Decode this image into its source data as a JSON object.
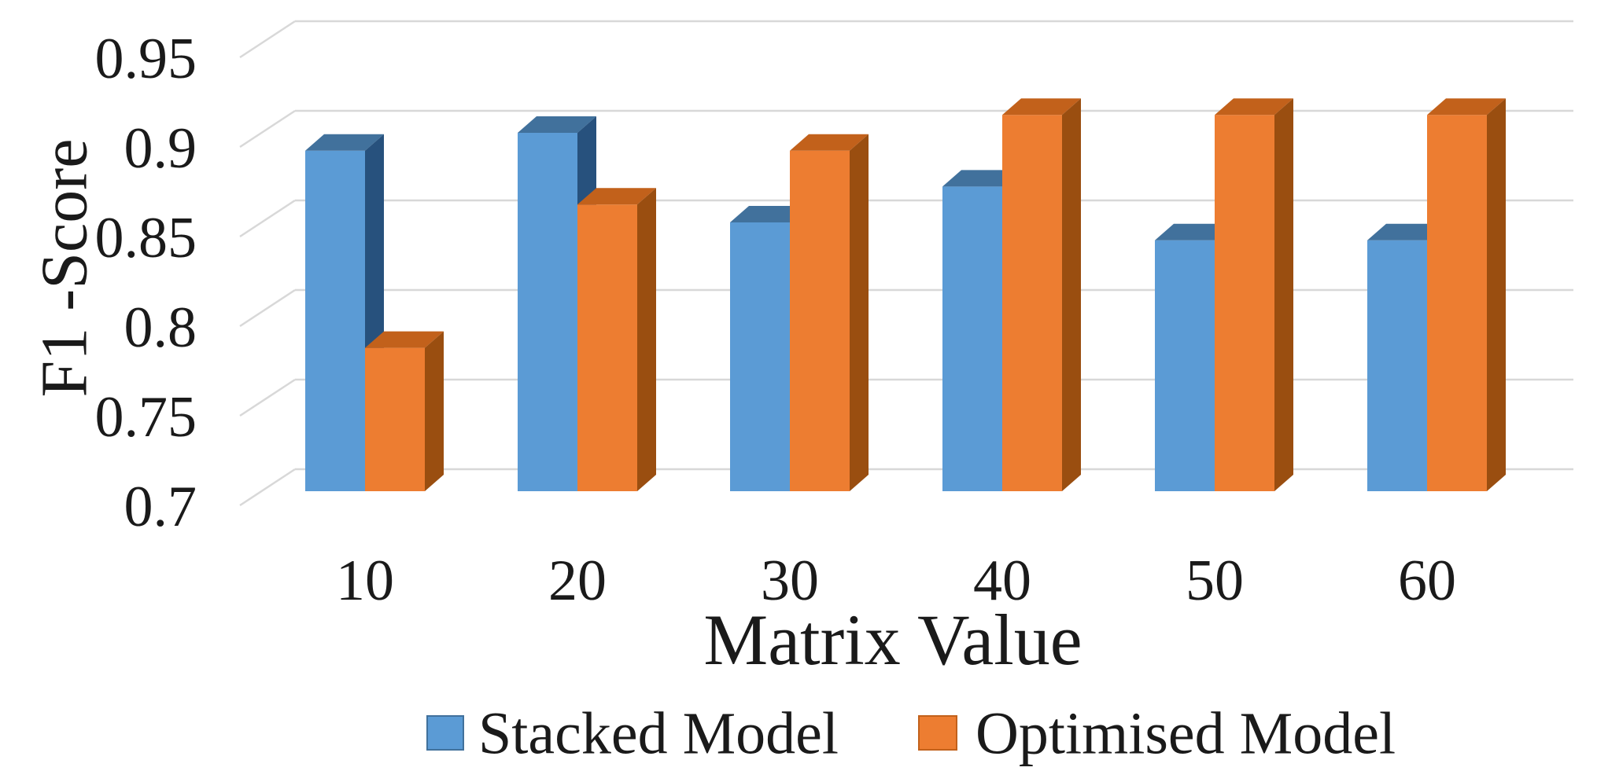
{
  "figure": {
    "background": "#ffffff",
    "text_color": "#1a1a1a",
    "gridline_color": "#d8d8d8"
  },
  "chart_data": {
    "type": "bar",
    "projection": "3d",
    "title": "",
    "x_axis_title": "Matrix Value",
    "y_axis_title": "F1 -Score",
    "categories": [
      "10",
      "20",
      "30",
      "40",
      "50",
      "60"
    ],
    "series": [
      {
        "name": "Stacked Model",
        "color": "#5B9BD5",
        "color_top": "#41719C",
        "color_side": "#27517D",
        "values": [
          0.89,
          0.9,
          0.85,
          0.87,
          0.84,
          0.84
        ]
      },
      {
        "name": "Optimised Model",
        "color": "#ED7D31",
        "color_top": "#C2611B",
        "color_side": "#9A4E10",
        "values": [
          0.78,
          0.86,
          0.89,
          0.91,
          0.91,
          0.91
        ]
      }
    ],
    "y_axis": {
      "min": 0.7,
      "max": 0.95,
      "step": 0.05,
      "tick_labels": [
        "0.7",
        "0.75",
        "0.8",
        "0.85",
        "0.9",
        "0.95"
      ]
    },
    "grid": true,
    "legend_position": "bottom"
  }
}
